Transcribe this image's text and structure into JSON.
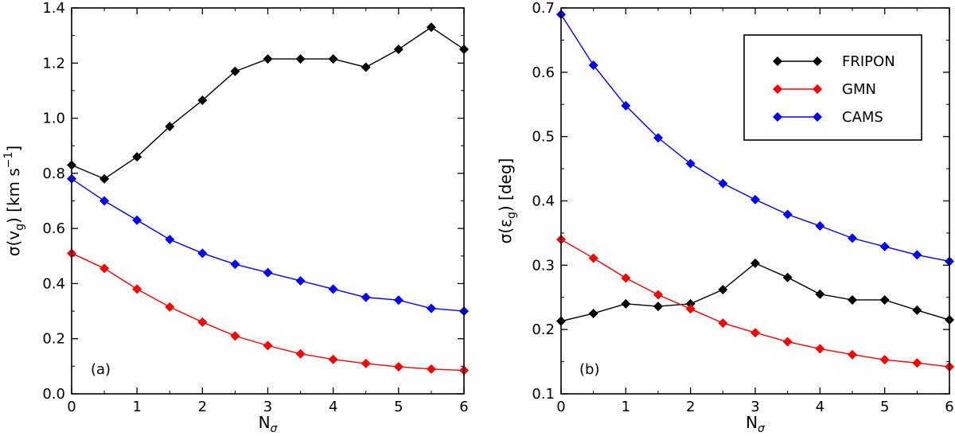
{
  "chart_data": [
    {
      "type": "line",
      "panel_tag": "(a)",
      "xlabel_main": "N",
      "xlabel_sub": "σ",
      "ylabel_parts": {
        "prefix": "σ(v",
        "sub": "g",
        "mid": ") [km s",
        "sup": "−1",
        "suffix": "]"
      },
      "xlim": [
        0,
        6
      ],
      "ylim": [
        0,
        1.4
      ],
      "xticks": [
        0,
        1,
        2,
        3,
        4,
        5,
        6
      ],
      "xtick_labels": [
        "0",
        "1",
        "2",
        "3",
        "4",
        "5",
        "6"
      ],
      "yticks": [
        0,
        0.2,
        0.4,
        0.6,
        0.8,
        1.0,
        1.2,
        1.4
      ],
      "ytick_labels": [
        "0.0",
        "0.2",
        "0.4",
        "0.6",
        "0.8",
        "1.0",
        "1.2",
        "1.4"
      ],
      "x": [
        0,
        0.5,
        1,
        1.5,
        2,
        2.5,
        3,
        3.5,
        4,
        4.5,
        5,
        5.5,
        6
      ],
      "series": [
        {
          "name": "FRIPON",
          "color": "#000000",
          "values": [
            0.83,
            0.78,
            0.86,
            0.97,
            1.065,
            1.17,
            1.215,
            1.215,
            1.215,
            1.185,
            1.25,
            1.33,
            1.25
          ]
        },
        {
          "name": "GMN",
          "color": "#ff0000",
          "values": [
            0.51,
            0.455,
            0.38,
            0.315,
            0.26,
            0.21,
            0.175,
            0.145,
            0.125,
            0.11,
            0.098,
            0.09,
            0.085
          ]
        },
        {
          "name": "CAMS",
          "color": "#0000ff",
          "values": [
            0.78,
            0.7,
            0.63,
            0.56,
            0.51,
            0.47,
            0.44,
            0.41,
            0.38,
            0.35,
            0.34,
            0.31,
            0.3
          ]
        }
      ]
    },
    {
      "type": "line",
      "panel_tag": "(b)",
      "xlabel_main": "N",
      "xlabel_sub": "σ",
      "ylabel_parts": {
        "prefix": "σ(ε",
        "sub": "g",
        "mid": ") [deg]",
        "sup": "",
        "suffix": ""
      },
      "xlim": [
        0,
        6
      ],
      "ylim": [
        0.1,
        0.7
      ],
      "xticks": [
        0,
        1,
        2,
        3,
        4,
        5,
        6
      ],
      "xtick_labels": [
        "0",
        "1",
        "2",
        "3",
        "4",
        "5",
        "6"
      ],
      "yticks": [
        0.1,
        0.2,
        0.3,
        0.4,
        0.5,
        0.6,
        0.7
      ],
      "ytick_labels": [
        "0.1",
        "0.2",
        "0.3",
        "0.4",
        "0.5",
        "0.6",
        "0.7"
      ],
      "legend": [
        "FRIPON",
        "GMN",
        "CAMS"
      ],
      "legend_position": "top-right",
      "x": [
        0,
        0.5,
        1,
        1.5,
        2,
        2.5,
        3,
        3.5,
        4,
        4.5,
        5,
        5.5,
        6
      ],
      "series": [
        {
          "name": "FRIPON",
          "color": "#000000",
          "values": [
            0.213,
            0.225,
            0.24,
            0.236,
            0.24,
            0.262,
            0.303,
            0.281,
            0.255,
            0.246,
            0.246,
            0.23,
            0.215
          ]
        },
        {
          "name": "GMN",
          "color": "#ff0000",
          "values": [
            0.34,
            0.311,
            0.28,
            0.254,
            0.232,
            0.21,
            0.195,
            0.181,
            0.17,
            0.161,
            0.153,
            0.148,
            0.142
          ]
        },
        {
          "name": "CAMS",
          "color": "#0000ff",
          "values": [
            0.69,
            0.611,
            0.548,
            0.498,
            0.458,
            0.427,
            0.402,
            0.379,
            0.361,
            0.342,
            0.329,
            0.316,
            0.306
          ]
        }
      ]
    }
  ]
}
